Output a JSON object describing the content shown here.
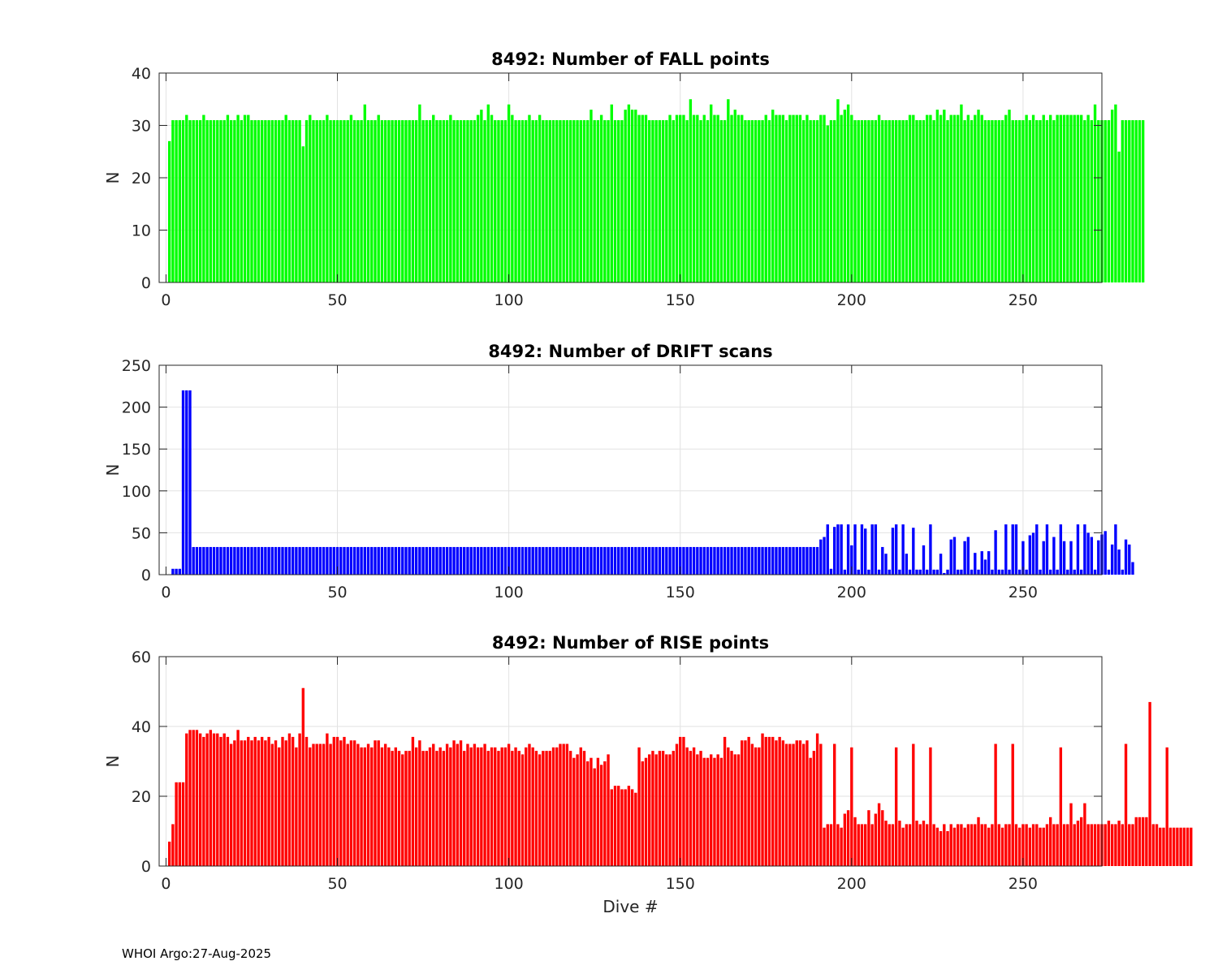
{
  "footer": "WHOI Argo:27-Aug-2025",
  "chart_data": [
    {
      "type": "bar",
      "title": "8492: Number of FALL points",
      "xlabel": "",
      "ylabel": "N",
      "color": "#00ff00",
      "xlim": [
        -2,
        273
      ],
      "ylim": [
        0,
        40
      ],
      "xticks": [
        0,
        50,
        100,
        150,
        200,
        250
      ],
      "yticks": [
        0,
        10,
        20,
        30,
        40
      ],
      "grid": true,
      "x_start": 1,
      "values": [
        27,
        31,
        31,
        31,
        31,
        32,
        31,
        31,
        31,
        31,
        32,
        31,
        31,
        31,
        31,
        31,
        31,
        32,
        31,
        31,
        32,
        31,
        32,
        32,
        31,
        31,
        31,
        31,
        31,
        31,
        31,
        31,
        31,
        31,
        32,
        31,
        31,
        31,
        31,
        26,
        31,
        32,
        31,
        31,
        31,
        31,
        32,
        31,
        31,
        31,
        31,
        31,
        31,
        32,
        31,
        31,
        31,
        34,
        31,
        31,
        31,
        32,
        31,
        31,
        31,
        31,
        31,
        31,
        31,
        31,
        31,
        31,
        31,
        34,
        31,
        31,
        31,
        32,
        31,
        31,
        31,
        31,
        32,
        31,
        31,
        31,
        31,
        31,
        31,
        31,
        32,
        33,
        31,
        34,
        32,
        31,
        31,
        31,
        31,
        34,
        32,
        31,
        31,
        31,
        31,
        32,
        31,
        31,
        32,
        31,
        31,
        31,
        31,
        31,
        31,
        31,
        31,
        31,
        31,
        31,
        31,
        31,
        31,
        33,
        31,
        31,
        32,
        31,
        31,
        34,
        31,
        31,
        31,
        33,
        34,
        33,
        33,
        32,
        32,
        32,
        31,
        31,
        31,
        31,
        31,
        31,
        32,
        31,
        32,
        32,
        32,
        31,
        35,
        32,
        32,
        31,
        32,
        31,
        34,
        32,
        32,
        31,
        31,
        35,
        32,
        33,
        32,
        32,
        31,
        31,
        31,
        31,
        31,
        31,
        32,
        31,
        33,
        32,
        32,
        32,
        31,
        32,
        32,
        32,
        32,
        31,
        32,
        31,
        31,
        31,
        32,
        32,
        30,
        31,
        31,
        35,
        32,
        33,
        34,
        32,
        31,
        31,
        31,
        31,
        31,
        31,
        31,
        32,
        31,
        31,
        31,
        31,
        31,
        31,
        31,
        31,
        32,
        32,
        31,
        31,
        31,
        32,
        32,
        31,
        33,
        32,
        33,
        31,
        32,
        32,
        32,
        34,
        31,
        32,
        31,
        32,
        33,
        32,
        31,
        31,
        31,
        31,
        31,
        31,
        32,
        33,
        31,
        31,
        31,
        31,
        32,
        31,
        32,
        31,
        31,
        32,
        31,
        32,
        31,
        32,
        32,
        32,
        32,
        32,
        32,
        32,
        32,
        31,
        32,
        31,
        34,
        31,
        31,
        31,
        31,
        33,
        34,
        25,
        31,
        31,
        31,
        31,
        31,
        31,
        31
      ]
    },
    {
      "type": "bar",
      "title": "8492: Number of DRIFT scans",
      "xlabel": "",
      "ylabel": "N",
      "color": "#0000ff",
      "xlim": [
        -2,
        273
      ],
      "ylim": [
        0,
        250
      ],
      "xticks": [
        0,
        50,
        100,
        150,
        200,
        250
      ],
      "yticks": [
        0,
        50,
        100,
        150,
        200,
        250
      ],
      "grid": true,
      "x_start": 1,
      "values": [
        0,
        7,
        7,
        7,
        220,
        220,
        220,
        33,
        33,
        33,
        33,
        33,
        33,
        33,
        33,
        33,
        33,
        33,
        33,
        33,
        33,
        33,
        33,
        33,
        33,
        33,
        33,
        33,
        33,
        33,
        33,
        33,
        33,
        33,
        33,
        33,
        33,
        33,
        33,
        33,
        33,
        33,
        33,
        33,
        33,
        33,
        33,
        33,
        33,
        33,
        33,
        33,
        33,
        33,
        33,
        33,
        33,
        33,
        33,
        33,
        33,
        33,
        33,
        33,
        33,
        33,
        33,
        33,
        33,
        33,
        33,
        33,
        33,
        33,
        33,
        33,
        33,
        33,
        33,
        33,
        33,
        33,
        33,
        33,
        33,
        33,
        33,
        33,
        33,
        33,
        33,
        33,
        33,
        33,
        33,
        33,
        33,
        33,
        33,
        33,
        33,
        33,
        33,
        33,
        33,
        33,
        33,
        33,
        33,
        33,
        33,
        33,
        33,
        33,
        33,
        33,
        33,
        33,
        33,
        33,
        33,
        33,
        33,
        33,
        33,
        33,
        33,
        33,
        33,
        33,
        33,
        33,
        33,
        33,
        33,
        33,
        33,
        33,
        33,
        33,
        33,
        33,
        33,
        33,
        33,
        33,
        33,
        33,
        33,
        33,
        33,
        33,
        33,
        33,
        33,
        33,
        33,
        33,
        33,
        33,
        33,
        33,
        33,
        33,
        33,
        33,
        33,
        33,
        33,
        33,
        33,
        33,
        33,
        33,
        33,
        33,
        33,
        33,
        33,
        33,
        33,
        33,
        33,
        33,
        33,
        33,
        33,
        33,
        33,
        33,
        42,
        45,
        60,
        7,
        57,
        60,
        60,
        6,
        60,
        35,
        60,
        6,
        60,
        55,
        6,
        60,
        60,
        6,
        33,
        25,
        6,
        56,
        60,
        6,
        60,
        25,
        6,
        56,
        6,
        6,
        35,
        6,
        60,
        6,
        6,
        25,
        2,
        6,
        42,
        45,
        6,
        6,
        40,
        45,
        6,
        26,
        6,
        28,
        18,
        28,
        6,
        53,
        6,
        6,
        60,
        6,
        60,
        60,
        6,
        40,
        6,
        47,
        50,
        60,
        6,
        40,
        60,
        6,
        45,
        6,
        60,
        40,
        6,
        40,
        6,
        60,
        6,
        60,
        50,
        45,
        6,
        41,
        48,
        52,
        6,
        36,
        60,
        30,
        6,
        42,
        36,
        15
      ]
    },
    {
      "type": "bar",
      "title": "8492: Number of RISE points",
      "xlabel": "Dive #",
      "ylabel": "N",
      "color": "#ff0000",
      "xlim": [
        -2,
        273
      ],
      "ylim": [
        0,
        60
      ],
      "xticks": [
        0,
        50,
        100,
        150,
        200,
        250
      ],
      "yticks": [
        0,
        20,
        40,
        60
      ],
      "grid": true,
      "x_start": 1,
      "values": [
        7,
        12,
        24,
        24,
        24,
        38,
        39,
        39,
        39,
        38,
        37,
        38,
        39,
        38,
        38,
        37,
        38,
        37,
        35,
        36,
        39,
        36,
        36,
        37,
        36,
        37,
        36,
        37,
        36,
        37,
        35,
        36,
        34,
        37,
        36,
        38,
        37,
        34,
        38,
        51,
        37,
        34,
        35,
        35,
        35,
        35,
        38,
        35,
        37,
        37,
        36,
        37,
        35,
        36,
        36,
        35,
        34,
        34,
        35,
        34,
        36,
        36,
        34,
        35,
        34,
        33,
        34,
        33,
        32,
        33,
        33,
        37,
        34,
        36,
        33,
        33,
        34,
        35,
        33,
        34,
        33,
        35,
        34,
        36,
        35,
        36,
        33,
        35,
        34,
        35,
        34,
        34,
        35,
        33,
        34,
        34,
        33,
        34,
        34,
        35,
        33,
        34,
        33,
        32,
        34,
        35,
        34,
        33,
        32,
        33,
        33,
        33,
        34,
        34,
        35,
        35,
        35,
        33,
        31,
        32,
        34,
        33,
        30,
        31,
        28,
        31,
        29,
        30,
        32,
        22,
        23,
        23,
        22,
        22,
        23,
        22,
        21,
        34,
        30,
        31,
        32,
        33,
        32,
        33,
        33,
        32,
        32,
        33,
        35,
        37,
        37,
        34,
        33,
        34,
        32,
        33,
        31,
        31,
        32,
        31,
        32,
        31,
        37,
        34,
        33,
        32,
        32,
        36,
        36,
        37,
        35,
        34,
        34,
        38,
        37,
        37,
        37,
        36,
        37,
        36,
        35,
        35,
        35,
        36,
        36,
        35,
        36,
        31,
        33,
        38,
        35,
        11,
        12,
        12,
        35,
        12,
        11,
        15,
        16,
        34,
        14,
        12,
        12,
        12,
        16,
        12,
        15,
        18,
        16,
        13,
        12,
        12,
        34,
        13,
        11,
        12,
        12,
        35,
        13,
        12,
        13,
        12,
        34,
        12,
        11,
        10,
        12,
        10,
        12,
        11,
        12,
        12,
        11,
        12,
        12,
        12,
        14,
        12,
        12,
        11,
        12,
        35,
        12,
        11,
        12,
        12,
        35,
        12,
        11,
        12,
        12,
        11,
        12,
        12,
        11,
        11,
        12,
        14,
        12,
        12,
        34,
        12,
        12,
        18,
        12,
        13,
        14,
        18,
        12,
        12,
        12,
        12,
        12,
        12,
        13,
        12,
        12,
        13,
        12,
        35,
        12,
        12,
        14,
        14,
        14,
        14,
        47,
        12,
        12,
        11,
        11,
        34,
        11,
        11,
        11,
        11,
        11,
        11,
        11
      ]
    }
  ]
}
